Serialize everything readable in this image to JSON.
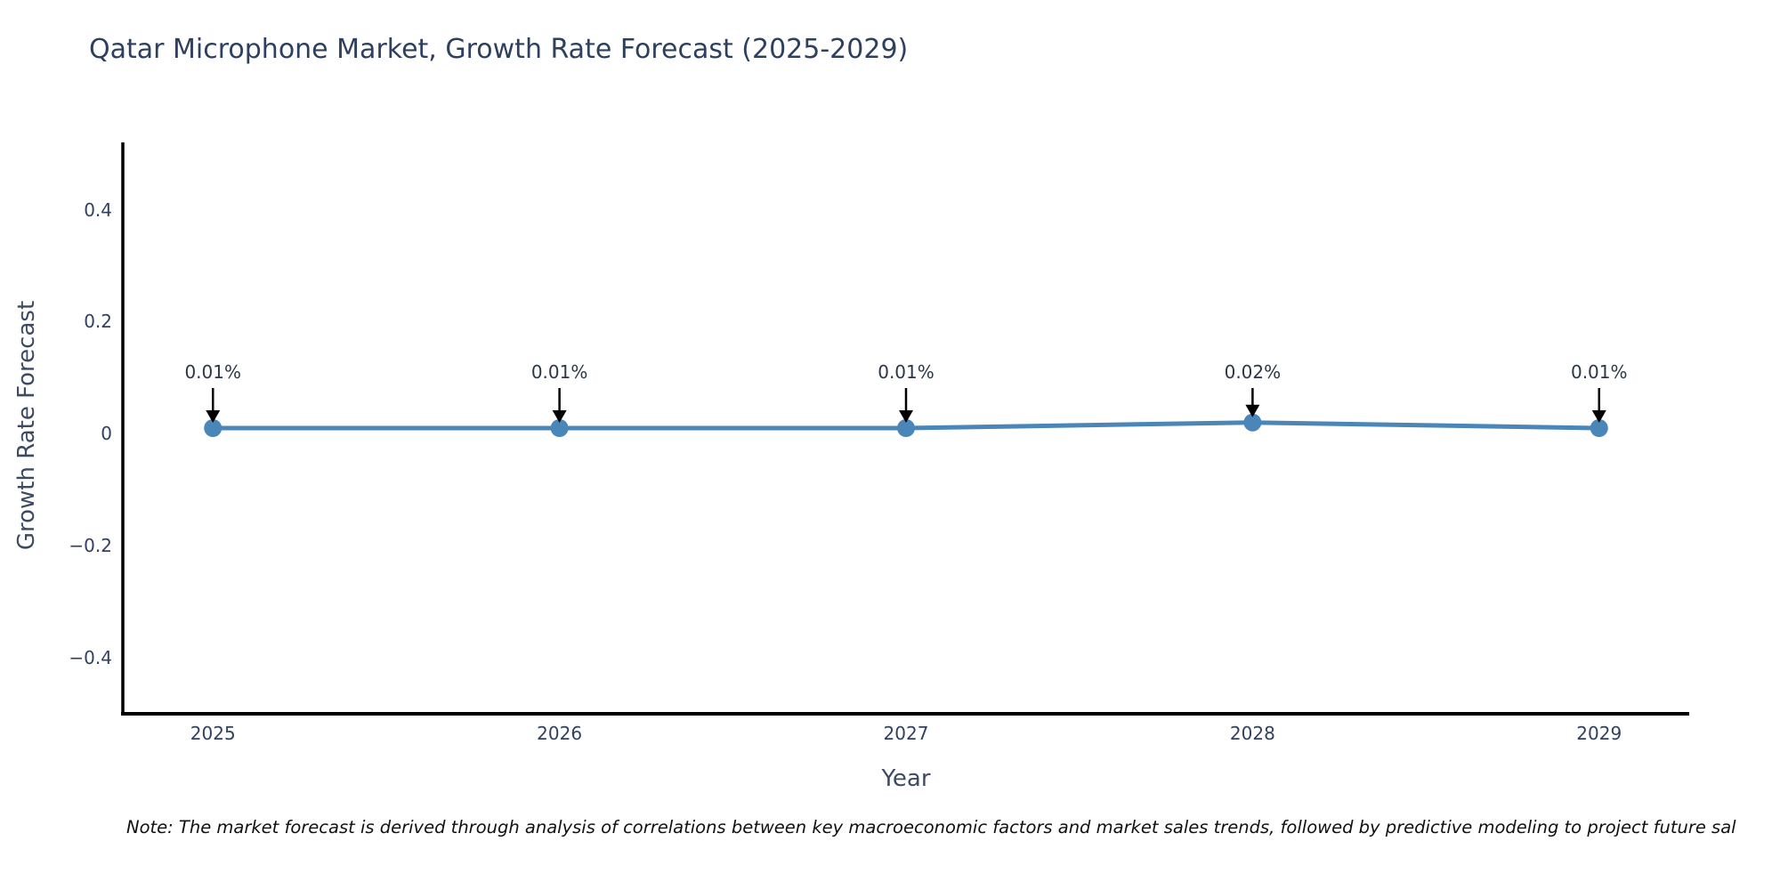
{
  "page": {
    "background": "#ffffff"
  },
  "title": {
    "text": "Qatar Microphone Market, Growth Rate Forecast (2025-2029)",
    "color": "#2e405f"
  },
  "note": {
    "text": "Note: The market forecast is derived through analysis of correlations between key macroeconomic factors and market sales trends, followed by predictive modeling to project future sal"
  },
  "colors": {
    "series_blue": "#4a86b8",
    "axis_spine": "#000000",
    "axis_text": "#32415f",
    "annotation_arrow": "#000000"
  },
  "chart_data": {
    "type": "line",
    "title": "Qatar Microphone Market, Growth Rate Forecast (2025-2029)",
    "xlabel": "Year",
    "ylabel": "Growth Rate Forecast",
    "x": [
      2025,
      2026,
      2027,
      2028,
      2029
    ],
    "series": [
      {
        "name": "Growth Rate Forecast",
        "values": [
          0.01,
          0.01,
          0.01,
          0.02,
          0.01
        ],
        "point_labels": [
          "0.01%",
          "0.01%",
          "0.01%",
          "0.02%",
          "0.01%"
        ],
        "color": "#4a86b8",
        "marker": "circle",
        "line_width": 5,
        "marker_radius": 10
      }
    ],
    "xticks": {
      "values": [
        2025,
        2026,
        2027,
        2028,
        2029
      ],
      "labels": [
        "2025",
        "2026",
        "2027",
        "2028",
        "2029"
      ]
    },
    "yticks": {
      "values": [
        -0.4,
        -0.2,
        0,
        0.2,
        0.4
      ],
      "labels": [
        "−0.4",
        "−0.2",
        "0",
        "0.2",
        "0.4"
      ]
    },
    "xlim": [
      2024.74,
      2029.26
    ],
    "ylim": [
      -0.5,
      0.52
    ],
    "grid": false,
    "legend": null,
    "annotation_style": "down-arrow"
  }
}
